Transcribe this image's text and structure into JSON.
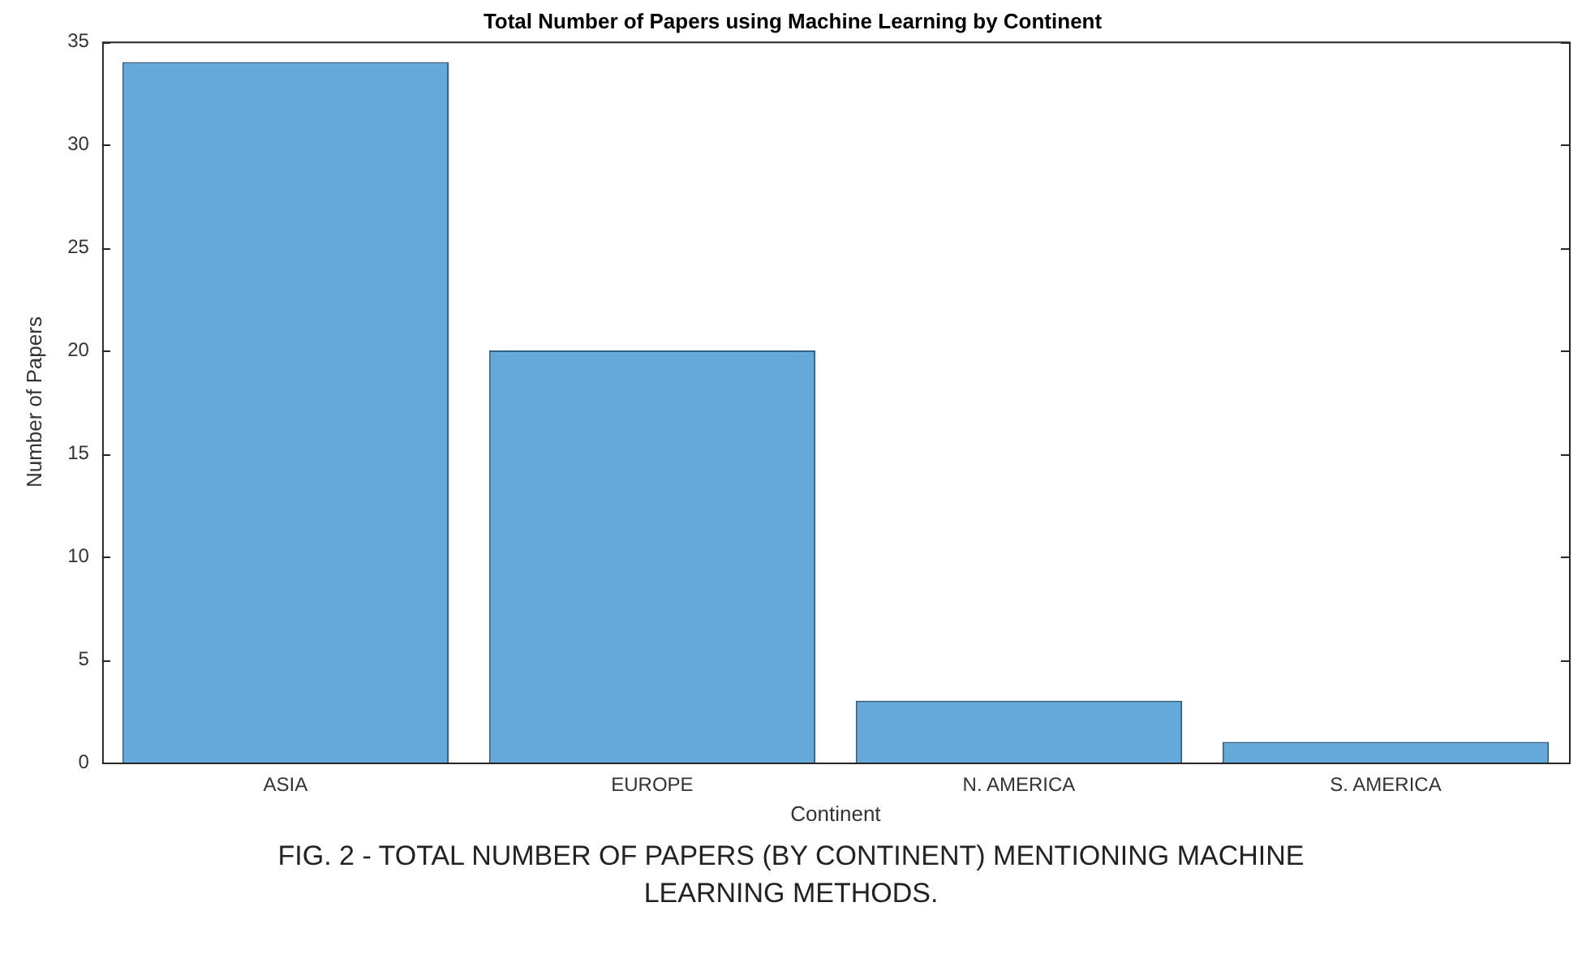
{
  "chart_data": {
    "type": "bar",
    "title": "Total Number of Papers using Machine Learning by Continent",
    "xlabel": "Continent",
    "ylabel": "Number of Papers",
    "categories": [
      "ASIA",
      "EUROPE",
      "N. AMERICA",
      "S. AMERICA"
    ],
    "values": [
      34,
      20,
      3,
      1
    ],
    "color": "#64a9d9",
    "ylim": [
      0,
      35
    ],
    "yticks": [
      0,
      5,
      10,
      15,
      20,
      25,
      30,
      35
    ],
    "grid": false,
    "annotations": [
      "FIG. 2 - TOTAL NUMBER OF PAPERS (BY CONTINENT) MENTIONING MACHINE LEARNING METHODS."
    ]
  }
}
